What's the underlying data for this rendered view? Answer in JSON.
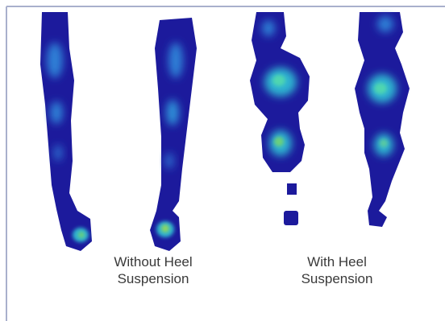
{
  "captions": [
    [
      "Without Heel",
      "Suspension"
    ],
    [
      "With Heel",
      "Suspension"
    ]
  ]
}
